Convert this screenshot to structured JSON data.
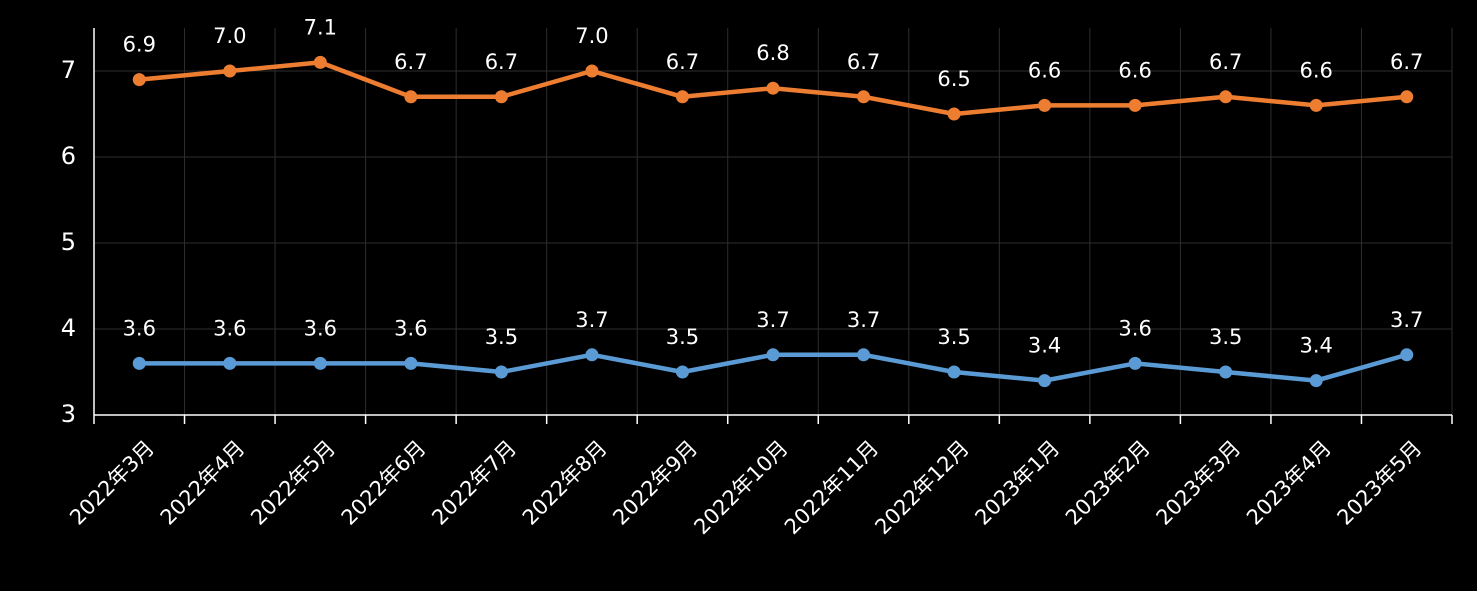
{
  "chart_data": {
    "type": "line",
    "categories": [
      "2022年3月",
      "2022年4月",
      "2022年5月",
      "2022年6月",
      "2022年7月",
      "2022年8月",
      "2022年9月",
      "2022年10月",
      "2022年11月",
      "2022年12月",
      "2023年1月",
      "2023年2月",
      "2023年3月",
      "2023年4月",
      "2023年5月"
    ],
    "series": [
      {
        "color": "#ed7d31",
        "values": [
          6.9,
          7,
          7.1,
          6.7,
          6.7,
          7,
          6.7,
          6.8,
          6.7,
          6.5,
          6.6,
          6.6,
          6.7,
          6.6,
          6.7
        ],
        "value_labels": [
          "6.9",
          "7.0",
          "7.1",
          "6.7",
          "6.7",
          "7.0",
          "6.7",
          "6.8",
          "6.7",
          "6.5",
          "6.6",
          "6.6",
          "6.7",
          "6.6",
          "6.7"
        ]
      },
      {
        "color": "#5b9bd5",
        "values": [
          3.6,
          3.6,
          3.6,
          3.6,
          3.5,
          3.7,
          3.5,
          3.7,
          3.7,
          3.5,
          3.4,
          3.6,
          3.5,
          3.4,
          3.7
        ],
        "value_labels": [
          "3.6",
          "3.6",
          "3.6",
          "3.6",
          "3.5",
          "3.7",
          "3.5",
          "3.7",
          "3.7",
          "3.5",
          "3.4",
          "3.6",
          "3.5",
          "3.4",
          "3.7"
        ]
      }
    ],
    "ylim": [
      3,
      7.5
    ],
    "yticks": [
      3,
      4,
      5,
      6,
      7
    ],
    "grid": true
  }
}
